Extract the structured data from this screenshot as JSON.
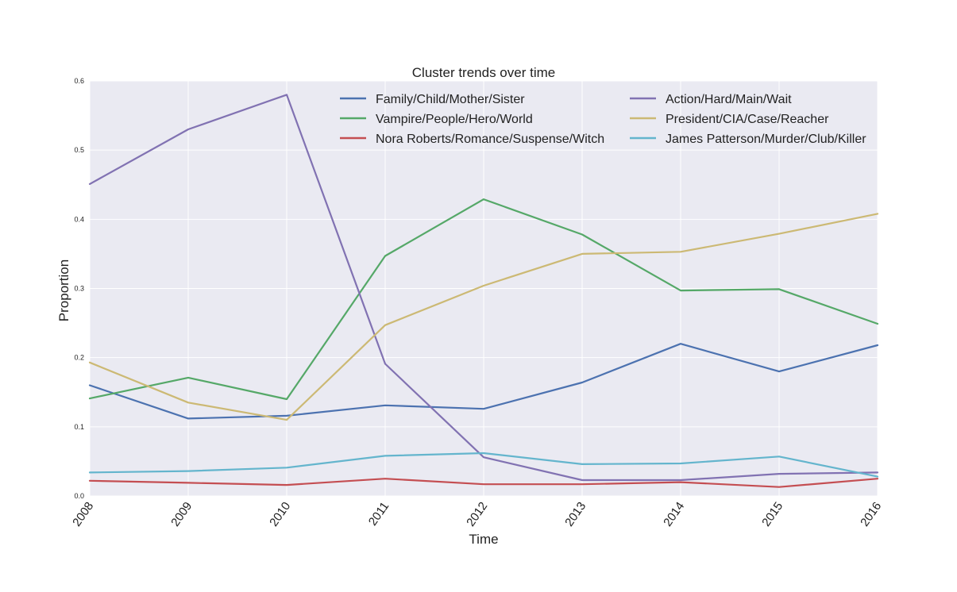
{
  "chart_data": {
    "type": "line",
    "title": "Cluster trends over time",
    "xlabel": "Time",
    "ylabel": "Proportion",
    "x": [
      "2008",
      "2009",
      "2010",
      "2011",
      "2012",
      "2013",
      "2014",
      "2015",
      "2016"
    ],
    "xlim": [
      2008,
      2016
    ],
    "ylim": [
      0.0,
      0.6
    ],
    "yticks": [
      "0.0",
      "0.1",
      "0.2",
      "0.3",
      "0.4",
      "0.5",
      "0.6"
    ],
    "grid": true,
    "legend_position": "top-right",
    "series": [
      {
        "name": "Family/Child/Mother/Sister",
        "color": "#4C72B0",
        "values": [
          0.16,
          0.112,
          0.116,
          0.131,
          0.126,
          0.164,
          0.22,
          0.18,
          0.218
        ]
      },
      {
        "name": "Vampire/People/Hero/World",
        "color": "#55A868",
        "values": [
          0.141,
          0.171,
          0.14,
          0.347,
          0.429,
          0.378,
          0.297,
          0.299,
          0.249
        ]
      },
      {
        "name": "Nora Roberts/Romance/Suspense/Witch",
        "color": "#C44E52",
        "values": [
          0.022,
          0.019,
          0.016,
          0.025,
          0.017,
          0.017,
          0.02,
          0.013,
          0.025
        ]
      },
      {
        "name": "Action/Hard/Main/Wait",
        "color": "#8172B2",
        "values": [
          0.451,
          0.53,
          0.58,
          0.191,
          0.056,
          0.023,
          0.023,
          0.032,
          0.034
        ]
      },
      {
        "name": "President/CIA/Case/Reacher",
        "color": "#CCB974",
        "values": [
          0.193,
          0.135,
          0.11,
          0.247,
          0.304,
          0.35,
          0.353,
          0.379,
          0.408
        ]
      },
      {
        "name": "James Patterson/Murder/Club/Killer",
        "color": "#64B5CD",
        "values": [
          0.034,
          0.036,
          0.041,
          0.058,
          0.062,
          0.046,
          0.047,
          0.057,
          0.028
        ]
      }
    ]
  }
}
